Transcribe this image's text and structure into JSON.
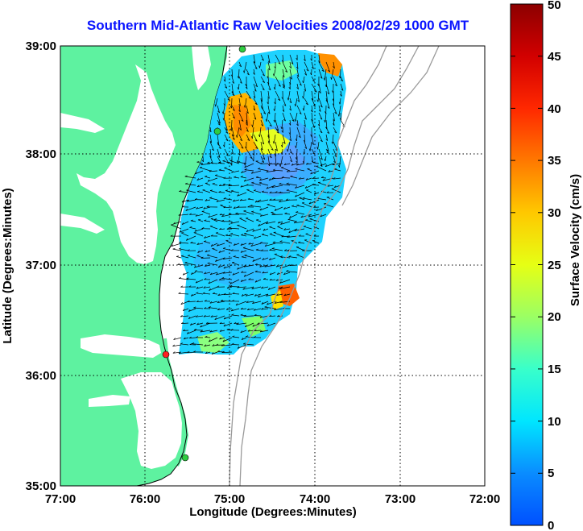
{
  "title": "Southern Mid-Atlantic Raw Velocities 2008/02/29 1000 GMT",
  "map": {
    "x_axis": {
      "label": "Longitude (Degrees:Minutes)",
      "ticks": [
        "77:00",
        "76:00",
        "75:00",
        "74:00",
        "73:00",
        "72:00"
      ]
    },
    "y_axis": {
      "label": "Latitude (Degrees:Minutes)",
      "ticks": [
        "39:00",
        "38:00",
        "37:00",
        "36:00",
        "35:00"
      ]
    },
    "grid": "dotted",
    "land_color": "#5ef2a0",
    "contour_color": "#9a9a9a",
    "stations": [
      {
        "name": "station-north",
        "color": "#2ecc40",
        "lon": -74.9,
        "lat": 39.0
      },
      {
        "name": "station-delmarva",
        "color": "#2ecc40",
        "lon": -75.15,
        "lat": 38.2
      },
      {
        "name": "station-duck",
        "color": "#ff2020",
        "lon": -75.75,
        "lat": 36.18
      },
      {
        "name": "station-hatteras",
        "color": "#2ecc40",
        "lon": -75.5,
        "lat": 35.2
      }
    ]
  },
  "colorbar": {
    "label": "Surface Velocity (cm/s)",
    "ticks": [
      "50",
      "45",
      "40",
      "35",
      "30",
      "25",
      "20",
      "15",
      "10",
      "5",
      "0"
    ],
    "min": 0,
    "max": 50
  }
}
